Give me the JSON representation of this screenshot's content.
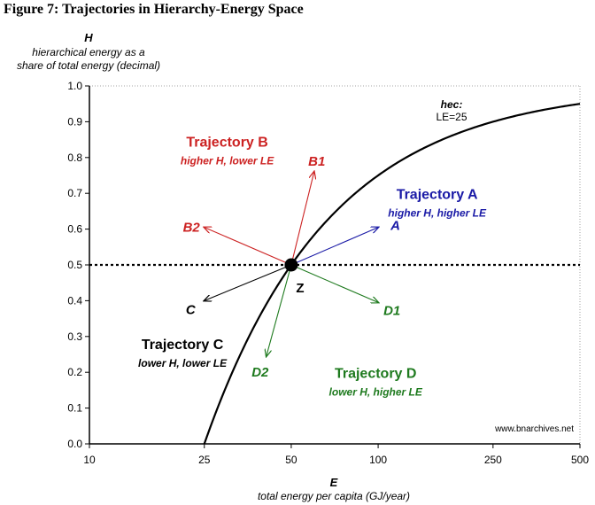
{
  "figure_title": "Figure 7: Trajectories in Hierarchy-Energy Space",
  "colors": {
    "red": "#cc2222",
    "blue": "#1a1aa6",
    "green": "#1e7a1e",
    "black": "#000000"
  },
  "chart_data": {
    "type": "line",
    "x_axis": {
      "letter": "E",
      "label": "total energy per capita (GJ/year)",
      "scale": "log",
      "range": [
        10,
        500
      ],
      "ticks": [
        10,
        25,
        50,
        100,
        250,
        500
      ],
      "tick_labels": [
        "10",
        "25",
        "50",
        "100",
        "250",
        "500"
      ]
    },
    "y_axis": {
      "letter": "H",
      "label_line1": "hierarchical energy as a",
      "label_line2": "share of total energy (decimal)",
      "range": [
        0,
        1
      ],
      "ticks": [
        0,
        0.1,
        0.2,
        0.3,
        0.4,
        0.5,
        0.6,
        0.7,
        0.8,
        0.9,
        1.0
      ],
      "tick_labels": [
        "0.0",
        "0.1",
        "0.2",
        "0.3",
        "0.4",
        "0.5",
        "0.6",
        "0.7",
        "0.8",
        "0.9",
        "1.0"
      ]
    },
    "curve": {
      "label_bold": "hec:",
      "label": "LE=25",
      "LE": 25,
      "x": [
        25,
        30,
        35,
        40,
        50,
        60,
        75,
        100,
        150,
        200,
        250,
        300,
        400,
        500
      ],
      "y": [
        0.0,
        0.167,
        0.286,
        0.375,
        0.5,
        0.583,
        0.667,
        0.75,
        0.833,
        0.875,
        0.9,
        0.917,
        0.9375,
        0.95
      ]
    },
    "reference_line": {
      "y": 0.5,
      "style": "dotted"
    },
    "origin": {
      "label": "Z",
      "x": 50,
      "y": 0.5
    },
    "arrows": [
      {
        "label": "A",
        "color": "blue",
        "x": 100,
        "y": 0.605
      },
      {
        "label": "B1",
        "color": "red",
        "x": 60,
        "y": 0.76
      },
      {
        "label": "B2",
        "color": "red",
        "x": 25,
        "y": 0.605
      },
      {
        "label": "C",
        "color": "black",
        "x": 25,
        "y": 0.4
      },
      {
        "label": "D1",
        "color": "green",
        "x": 100,
        "y": 0.395
      },
      {
        "label": "D2",
        "color": "green",
        "x": 41,
        "y": 0.245
      }
    ],
    "regions": [
      {
        "title": "Trajectory A",
        "subtitle": "higher H, higher LE",
        "color": "blue",
        "x": 160,
        "y": 0.685
      },
      {
        "title": "Trajectory B",
        "subtitle": "higher H, lower LE",
        "color": "red",
        "x": 30,
        "y": 0.83
      },
      {
        "title": "Trajectory C",
        "subtitle": "lower H, lower LE",
        "color": "black",
        "x": 21,
        "y": 0.265
      },
      {
        "title": "Trajectory D",
        "subtitle": "lower H, higher LE",
        "color": "green",
        "x": 98,
        "y": 0.185
      }
    ],
    "credit": "www.bnarchives.net",
    "grid": false
  }
}
